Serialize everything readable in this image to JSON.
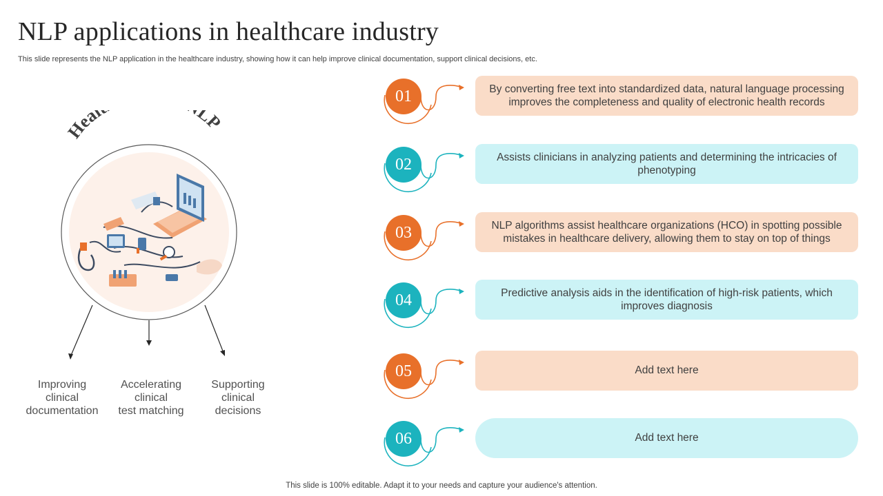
{
  "page": {
    "title": "NLP applications in healthcare industry",
    "subtitle": "This slide represents the NLP application in the healthcare industry, showing how it can help improve clinical documentation, support clinical decisions, etc.",
    "footer": "This slide is 100% editable. Adapt it to your needs and capture your audience's attention."
  },
  "left": {
    "arc_title": "Healthcare and NLP",
    "captions": [
      "Improving\nclinical\ndocumentation",
      "Accelerating\nclinical\ntest matching",
      "Supporting\nclinical\ndecisions"
    ]
  },
  "items": [
    {
      "number": "01",
      "text": "By converting free text into standardized data, natural language processing improves the completeness and quality of electronic health records",
      "color": "orange"
    },
    {
      "number": "02",
      "text": "Assists clinicians in analyzing patients and determining the intricacies of phenotyping",
      "color": "teal"
    },
    {
      "number": "03",
      "text": "NLP algorithms assist healthcare organizations (HCO) in spotting possible mistakes in healthcare delivery, allowing them to stay on top of things",
      "color": "orange"
    },
    {
      "number": "04",
      "text": "Predictive analysis aids in the identification of high-risk patients, which improves diagnosis",
      "color": "teal"
    },
    {
      "number": "05",
      "text": "Add text here",
      "color": "orange"
    },
    {
      "number": "06",
      "text": "Add text here",
      "color": "teal"
    }
  ],
  "colors": {
    "orange": "#e8702a",
    "teal": "#1cb3be",
    "orange_box": "#fadcc8",
    "teal_box": "#ccf3f6"
  }
}
